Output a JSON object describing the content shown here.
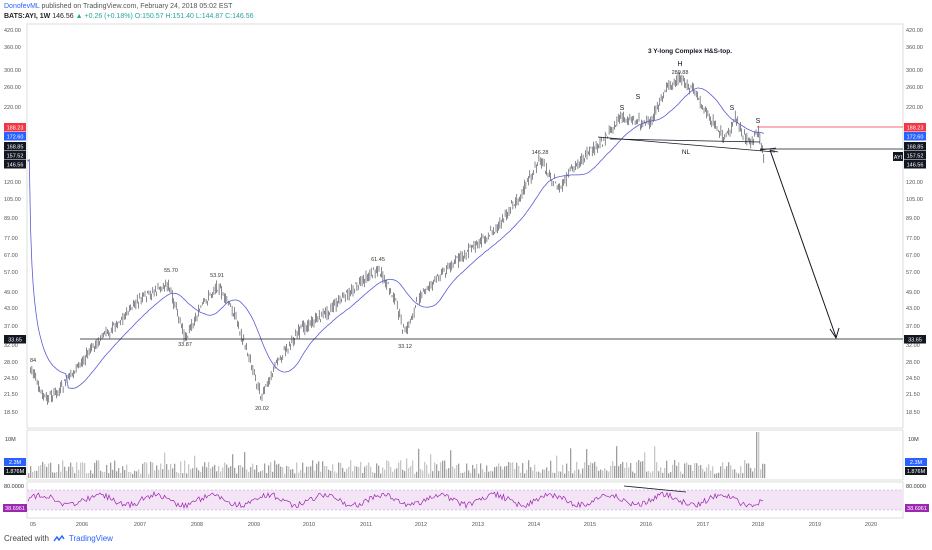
{
  "header": {
    "author": "DonofevML",
    "published_text": " published on TradingView.com, February 24, 2018 05:02 EST",
    "symbol": "BATS:AYI, 1W",
    "last": "146.56",
    "change": "+0.26 (+0.18%)",
    "open": "O:150.57",
    "high": "H:151.40",
    "low": "L:144.87",
    "close": "C:146.56"
  },
  "price_axis": {
    "ticks": [
      "420.00",
      "360.00",
      "300.00",
      "260.00",
      "220.00",
      "188.23",
      "172.60",
      "168.85",
      "157.52",
      "146.56",
      "120.00",
      "105.00",
      "89.00",
      "77.00",
      "67.00",
      "57.00",
      "49.00",
      "43.00",
      "37.00",
      "33.65",
      "32.00",
      "28.00",
      "24.50",
      "21.50",
      "18.50"
    ]
  },
  "right_badges": [
    {
      "text": "188.23",
      "color": "#f23645"
    },
    {
      "text": "172.60",
      "color": "#2962ff"
    },
    {
      "text": "168.85",
      "color": "#131722"
    },
    {
      "text": "157.52",
      "color": "#131722"
    },
    {
      "text": "146.56",
      "color": "#131722"
    },
    {
      "text": "33.65",
      "color": "#131722"
    }
  ],
  "left_badges": [
    {
      "text": "188.23",
      "color": "#f23645"
    },
    {
      "text": "172.60",
      "color": "#2962ff"
    },
    {
      "text": "168.85",
      "color": "#131722"
    },
    {
      "text": "157.52",
      "color": "#131722"
    },
    {
      "text": "146.56",
      "color": "#131722"
    },
    {
      "text": "33.65",
      "color": "#131722"
    }
  ],
  "ayi_tag": "AYI",
  "annotations": {
    "title": "3 Y-long Complex H&S-top.",
    "head": "H",
    "shoulders": [
      "S",
      "S",
      "S",
      "S"
    ],
    "neckline": "NL"
  },
  "price_labels": [
    "55.70",
    "53.91",
    "61.45",
    "146.28",
    "280.88",
    "33.87",
    "20.02",
    "33.12",
    "84"
  ],
  "volume_panel": {
    "axis_top": "10M",
    "badge_blue": "2.3M",
    "badge_dark": "1.876M"
  },
  "rsi_panel": {
    "axis_top": "80.0000",
    "value": "38.6961",
    "color": "#9c27b0"
  },
  "time_axis": [
    "05",
    "2006",
    "2007",
    "2008",
    "2009",
    "2010",
    "2011",
    "2012",
    "2013",
    "2014",
    "2015",
    "2016",
    "2017",
    "2018",
    "2019",
    "2020"
  ],
  "footer": {
    "created": "Created with",
    "brand": "TradingView"
  },
  "colors": {
    "candle": "#131722",
    "ma": "#5b5bd6",
    "resistance": "#f23645",
    "rsi": "#9c27b0",
    "rsi_band": "#f3e5f5"
  }
}
